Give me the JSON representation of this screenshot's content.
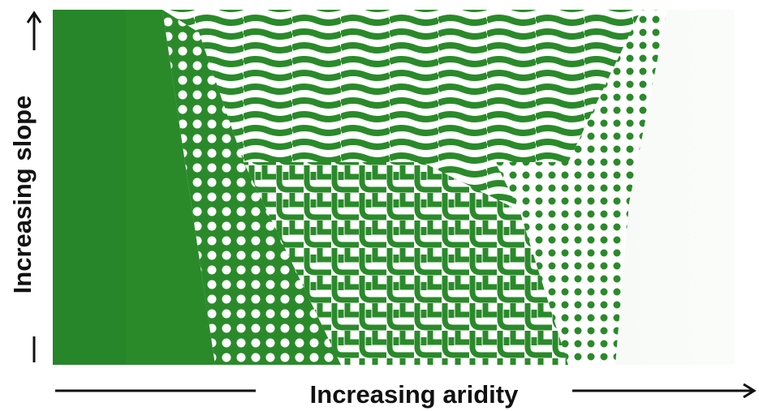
{
  "labels": {
    "y_axis": "Increasing slope",
    "x_axis": "Increasing aridity"
  }
}
